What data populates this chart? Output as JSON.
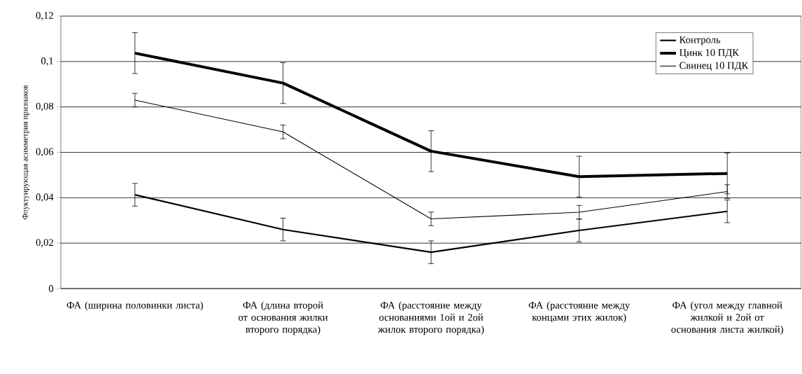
{
  "chart_data": {
    "type": "line",
    "ylabel": "Флуктуирующая асимметрия признаков",
    "categories": [
      "ФА (ширина половинки листа)",
      "ФА (длина второй от основания жилки второго порядка)",
      "ФА (расстояние между основаниями 1ой и 2ой жилок второго порядка)",
      "ФА (расстояние между концами этих жилок)",
      "ФА (угол между главной жилкой и 2ой от основания листа жилкой)"
    ],
    "series": [
      {
        "name": "Контроль",
        "color": "#000000",
        "values": [
          0.0413,
          0.026,
          0.016,
          0.0256,
          0.034
        ],
        "errors": [
          0.005,
          0.005,
          0.005,
          0.005,
          0.005
        ]
      },
      {
        "name": "Цинк 10 ПДК",
        "color": "#000000",
        "values": [
          0.1037,
          0.0905,
          0.0605,
          0.0493,
          0.0507
        ],
        "errors": [
          0.009,
          0.009,
          0.009,
          0.009,
          0.009
        ]
      },
      {
        "name": "Свинец 10 ПДК",
        "color": "#000000",
        "values": [
          0.083,
          0.069,
          0.0307,
          0.0336,
          0.0427
        ],
        "errors": [
          0.003,
          0.003,
          0.003,
          0.003,
          0.003
        ]
      }
    ],
    "ylim": [
      0,
      0.12
    ],
    "yticks": [
      {
        "value": 0,
        "label": "0"
      },
      {
        "value": 0.02,
        "label": "0,02"
      },
      {
        "value": 0.04,
        "label": "0,04"
      },
      {
        "value": 0.06,
        "label": "0,06"
      },
      {
        "value": 0.08,
        "label": "0,08"
      },
      {
        "value": 0.1,
        "label": "0,1"
      },
      {
        "value": 0.12,
        "label": "0,12"
      }
    ],
    "grid": "y",
    "legend": "top right",
    "marker": "none",
    "line_style": "solid"
  }
}
